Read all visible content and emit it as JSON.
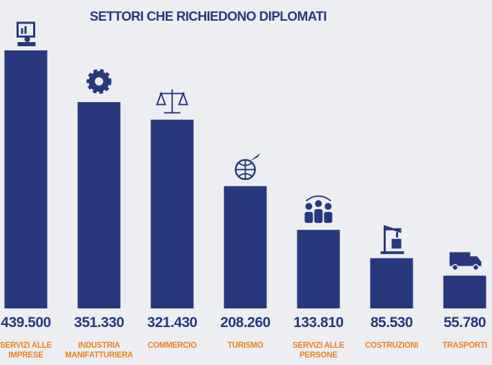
{
  "chart_data": {
    "type": "bar",
    "title": "SETTORI CHE RICHIEDONO DIPLOMATI",
    "categories": [
      "SERVIZI ALLE IMPRESE",
      "INDUSTRIA MANIFATTURIERA",
      "COMMERCIO",
      "TURISMO",
      "SERVIZI ALLE PERSONE",
      "COSTRUZIONI",
      "TRASPORTI"
    ],
    "values": [
      439500,
      351330,
      321430,
      208260,
      133810,
      85530,
      55780
    ],
    "value_labels": [
      "439.500",
      "351.330",
      "321.430",
      "208.260",
      "133.810",
      "85.530",
      "55.780"
    ],
    "color": "#27387c",
    "label_color": "#f07f1e"
  }
}
